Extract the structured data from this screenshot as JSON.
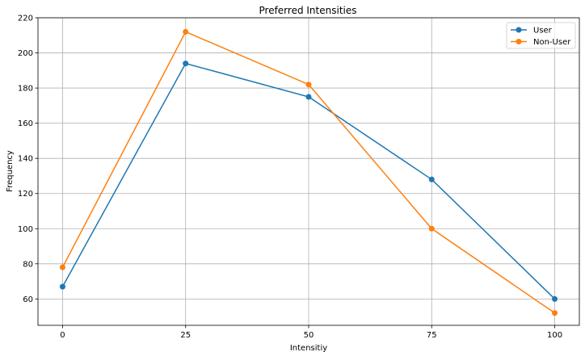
{
  "chart_data": {
    "type": "line",
    "title": "Preferred Intensities",
    "xlabel": "Intensitiy",
    "ylabel": "Frequency",
    "x": [
      0,
      25,
      50,
      75,
      100
    ],
    "x_ticks": [
      "0",
      "25",
      "50",
      "75",
      "100"
    ],
    "y_ticks": [
      "60",
      "80",
      "100",
      "120",
      "140",
      "160",
      "180",
      "200",
      "220"
    ],
    "xlim": [
      -5,
      105
    ],
    "ylim": [
      45,
      220
    ],
    "grid": true,
    "legend_position": "top-right",
    "series": [
      {
        "name": "User",
        "color": "#1f77b4",
        "values": [
          67,
          194,
          175,
          128,
          60
        ]
      },
      {
        "name": "Non-User",
        "color": "#ff7f0e",
        "values": [
          78,
          212,
          182,
          100,
          52
        ]
      }
    ]
  }
}
